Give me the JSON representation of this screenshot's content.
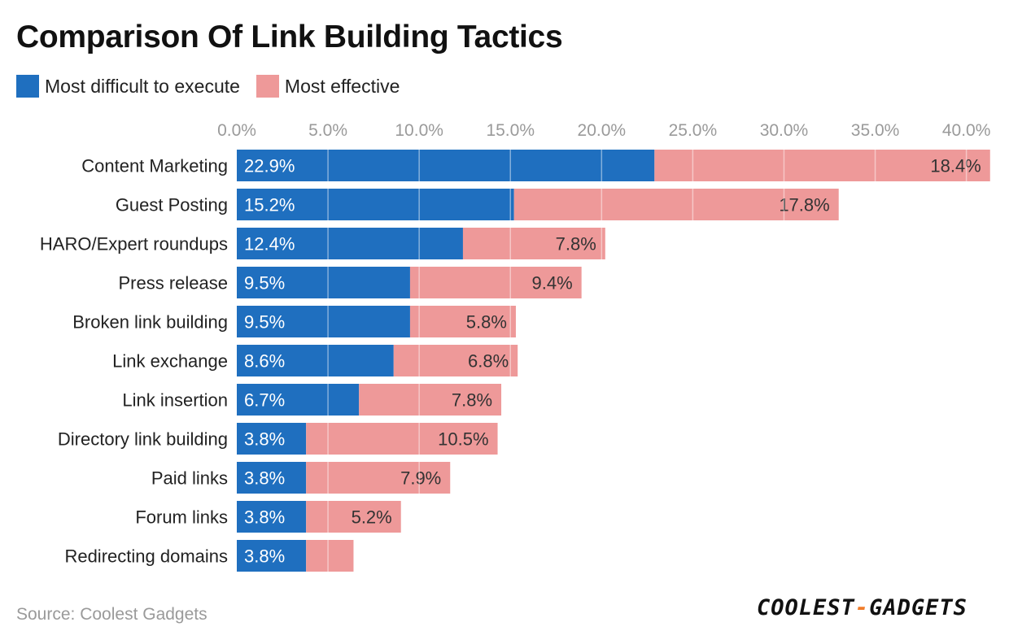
{
  "title": "Comparison Of Link Building Tactics",
  "source": "Source: Coolest Gadgets",
  "logo": {
    "part1": "COOLEST",
    "dash": "-",
    "part2": "GADGETS"
  },
  "colors": {
    "difficult": "#1f6fbf",
    "effective": "#ee9999",
    "accent": "#f07c2a"
  },
  "chart_data": {
    "type": "bar",
    "orientation": "horizontal",
    "stacked": true,
    "categories": [
      "Content Marketing",
      "Guest Posting",
      "HARO/Expert roundups",
      "Press release",
      "Broken link building",
      "Link exchange",
      "Link insertion",
      "Directory link building",
      "Paid links",
      "Forum links",
      "Redirecting domains"
    ],
    "series": [
      {
        "name": "Most difficult to execute",
        "color": "#1f6fbf",
        "values": [
          22.9,
          15.2,
          12.4,
          9.5,
          9.5,
          8.6,
          6.7,
          3.8,
          3.8,
          3.8,
          3.8
        ],
        "labels": [
          "22.9%",
          "15.2%",
          "12.4%",
          "9.5%",
          "9.5%",
          "8.6%",
          "6.7%",
          "3.8%",
          "3.8%",
          "3.8%",
          "3.8%"
        ]
      },
      {
        "name": "Most effective",
        "color": "#ee9999",
        "values": [
          18.4,
          17.8,
          7.8,
          9.4,
          5.8,
          6.8,
          7.8,
          10.5,
          7.9,
          5.2,
          2.6
        ],
        "labels": [
          "18.4%",
          "17.8%",
          "7.8%",
          "9.4%",
          "5.8%",
          "6.8%",
          "7.8%",
          "10.5%",
          "7.9%",
          "5.2%",
          ""
        ]
      }
    ],
    "xticks": [
      "0.0%",
      "5.0%",
      "10.0%",
      "15.0%",
      "20.0%",
      "25.0%",
      "30.0%",
      "35.0%",
      "40.0%"
    ],
    "xtick_values": [
      0,
      5,
      10,
      15,
      20,
      25,
      30,
      35,
      40
    ],
    "xlim": [
      0,
      41.4
    ],
    "grid": true,
    "legend": "top-left"
  }
}
